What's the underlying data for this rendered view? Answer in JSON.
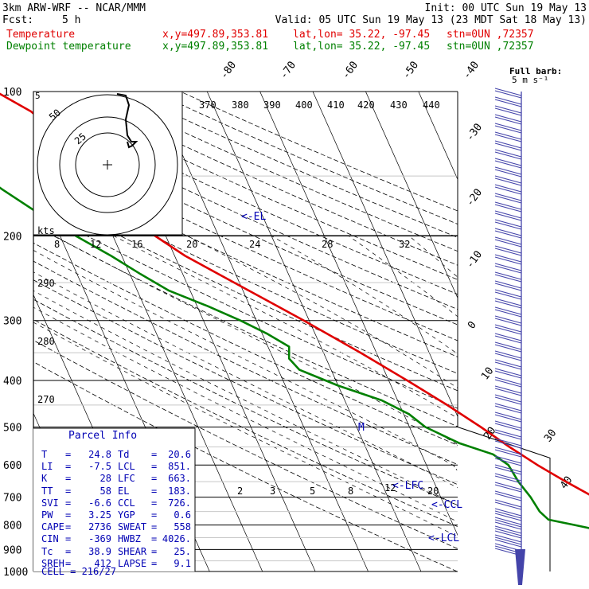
{
  "header": {
    "model": "3km ARW-WRF -- NCAR/MMM",
    "init": "Init: 00 UTC Sun 19 May 13",
    "fcst_label": "Fcst:",
    "fcst_value": "5 h",
    "valid": "Valid: 05 UTC Sun 19 May 13 (23 MDT Sat 18 May 13)",
    "temp_label": "Temperature",
    "dew_label": "Dewpoint temperature",
    "xy": "x,y=497.89,353.81",
    "latlon": "lat,lon= 35.22, -97.45",
    "stn": "stn=0UN ,72357"
  },
  "colors": {
    "temperature": "#e00000",
    "dewpoint": "#008000",
    "parcel_text": "#0000b4",
    "barbs": "#4444aa"
  },
  "chart_data": {
    "type": "line",
    "title": "",
    "y_axis": "pressure (hPa), log scale",
    "pressure_ticks": [
      "100",
      "200",
      "300",
      "400",
      "500",
      "600",
      "700",
      "800",
      "900",
      "1000"
    ],
    "isotherm_labels": [
      "-80",
      "-70",
      "-60",
      "-50",
      "-40",
      "-30",
      "-20",
      "-10",
      "0",
      "10",
      "20",
      "30",
      "40"
    ],
    "theta_labels_top": [
      "370",
      "380",
      "390",
      "400",
      "410",
      "420",
      "430",
      "440"
    ],
    "theta_labels_left": [
      "290",
      "280",
      "270"
    ],
    "mixing_ratio_labels": [
      "2",
      "3",
      "5",
      "8",
      "12",
      "20"
    ],
    "annotations": [
      "<-EL",
      "<-LFC",
      "<-CCL",
      "<-LCL",
      "M"
    ],
    "wind_header": "Full barb:",
    "wind_unit": "5 m s⁻¹",
    "series": [
      {
        "name": "Temperature",
        "color": "#e00000",
        "points": [
          [
            1000,
            22.0
          ],
          [
            950,
            23.4
          ],
          [
            925,
            24.0
          ],
          [
            900,
            23.0
          ],
          [
            850,
            21.0
          ],
          [
            800,
            17.0
          ],
          [
            750,
            13.0
          ],
          [
            700,
            9.0
          ],
          [
            650,
            5.0
          ],
          [
            600,
            1.0
          ],
          [
            550,
            -2.8
          ],
          [
            500,
            -6.5
          ],
          [
            450,
            -11.0
          ],
          [
            400,
            -16.5
          ],
          [
            350,
            -23.0
          ],
          [
            300,
            -31.0
          ],
          [
            250,
            -41.0
          ],
          [
            220,
            -48.0
          ],
          [
            200,
            -52.0
          ],
          [
            180,
            -55.0
          ],
          [
            170,
            -56.0
          ],
          [
            150,
            -57.0
          ],
          [
            130,
            -60.0
          ],
          [
            110,
            -65.0
          ],
          [
            100,
            -70.0
          ]
        ]
      },
      {
        "name": "Dewpoint temperature",
        "color": "#008000",
        "points": [
          [
            975,
            20.8
          ],
          [
            950,
            19.5
          ],
          [
            900,
            17.5
          ],
          [
            850,
            13.0
          ],
          [
            800,
            3.0
          ],
          [
            780,
            -1.5
          ],
          [
            750,
            -2.5
          ],
          [
            700,
            -3.0
          ],
          [
            650,
            -4.0
          ],
          [
            600,
            -4.5
          ],
          [
            570,
            -6.5
          ],
          [
            540,
            -12.0
          ],
          [
            500,
            -17.0
          ],
          [
            470,
            -19.0
          ],
          [
            440,
            -23.0
          ],
          [
            410,
            -30.0
          ],
          [
            380,
            -36.0
          ],
          [
            360,
            -37.0
          ],
          [
            340,
            -36.0
          ],
          [
            320,
            -39.0
          ],
          [
            300,
            -43.0
          ],
          [
            280,
            -48.0
          ],
          [
            260,
            -54.0
          ],
          [
            240,
            -58.0
          ],
          [
            220,
            -62.0
          ],
          [
            200,
            -67.0
          ],
          [
            180,
            -72.0
          ],
          [
            160,
            -77.0
          ],
          [
            140,
            -82.0
          ],
          [
            120,
            -88.0
          ],
          [
            100,
            -93.0
          ]
        ]
      }
    ]
  },
  "hodograph": {
    "unit": "kts",
    "ring_labels": [
      "50",
      "25",
      "5"
    ],
    "speed_labels": [
      "8",
      "12",
      "16",
      "20",
      "24",
      "28",
      "32"
    ]
  },
  "parcel_info": {
    "title": "Parcel Info",
    "rows": [
      [
        "T",
        "24.8",
        "Td",
        "20.6"
      ],
      [
        "LI",
        "-7.5",
        "LCL",
        "851."
      ],
      [
        "K",
        "28",
        "LFC",
        "663."
      ],
      [
        "TT",
        "58",
        "EL",
        "183."
      ],
      [
        "SVI",
        "-6.6",
        "CCL",
        "726."
      ],
      [
        "PW",
        "3.25",
        "YGP",
        "0.6"
      ],
      [
        "CAPE",
        "2736",
        "SWEAT",
        "558"
      ],
      [
        "CIN",
        "-369",
        "HWBZ",
        "4026."
      ],
      [
        "Tc",
        "38.9",
        "SHEAR",
        "25."
      ],
      [
        "SREH",
        "412",
        "LAPSE",
        "9.1"
      ]
    ],
    "cell": "CELL = 216/27"
  }
}
